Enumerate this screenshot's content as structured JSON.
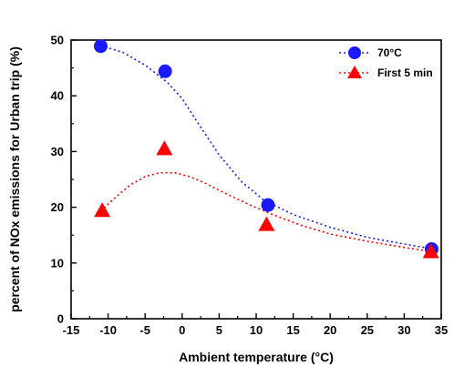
{
  "chart_data": {
    "type": "scatter",
    "xlabel": "Ambient temperature (°C)",
    "ylabel": "percent of NOx emissions for Urban trip (%)",
    "xlim": [
      -15,
      35
    ],
    "ylim": [
      0,
      50
    ],
    "x_ticks": [
      -15,
      -10,
      -5,
      0,
      5,
      10,
      15,
      20,
      25,
      30,
      35
    ],
    "y_ticks": [
      0,
      10,
      20,
      30,
      40,
      50
    ],
    "x_tick_labels": [
      "-15",
      "-10",
      "-5",
      "0",
      "5",
      "10",
      "15",
      "20",
      "25",
      "30",
      "35"
    ],
    "y_tick_labels": [
      "0",
      "10",
      "20",
      "30",
      "40",
      "50"
    ],
    "grid": false,
    "legend_position": "top-right",
    "series": [
      {
        "name": "70°C",
        "marker": "circle",
        "color": "#1a1aff",
        "trend_line": "dotted",
        "points": [
          {
            "x": -11,
            "y": 48.9
          },
          {
            "x": -2.3,
            "y": 44.4
          },
          {
            "x": 11.6,
            "y": 20.4
          },
          {
            "x": 33.7,
            "y": 12.5
          }
        ],
        "trend": [
          {
            "x": -11,
            "y": 49.0
          },
          {
            "x": -8,
            "y": 47.8
          },
          {
            "x": -5,
            "y": 45.5
          },
          {
            "x": -2,
            "y": 42.4
          },
          {
            "x": 0,
            "y": 39.5
          },
          {
            "x": 2,
            "y": 35.4
          },
          {
            "x": 5,
            "y": 29.4
          },
          {
            "x": 8,
            "y": 24.6
          },
          {
            "x": 11,
            "y": 21.3
          },
          {
            "x": 15,
            "y": 18.7
          },
          {
            "x": 20,
            "y": 16.4
          },
          {
            "x": 25,
            "y": 14.6
          },
          {
            "x": 30,
            "y": 13.4
          },
          {
            "x": 34,
            "y": 12.5
          }
        ]
      },
      {
        "name": "First 5 min",
        "marker": "triangle",
        "color": "#ff0000",
        "trend_line": "dotted",
        "points": [
          {
            "x": -10.8,
            "y": 19.4
          },
          {
            "x": -2.4,
            "y": 30.5
          },
          {
            "x": 11.4,
            "y": 16.9
          },
          {
            "x": 33.6,
            "y": 12.0
          }
        ],
        "trend": [
          {
            "x": -11,
            "y": 19.3
          },
          {
            "x": -9,
            "y": 21.8
          },
          {
            "x": -7,
            "y": 24.0
          },
          {
            "x": -5,
            "y": 25.5
          },
          {
            "x": -3,
            "y": 26.2
          },
          {
            "x": -1,
            "y": 26.2
          },
          {
            "x": 1,
            "y": 25.5
          },
          {
            "x": 3,
            "y": 24.4
          },
          {
            "x": 6,
            "y": 22.4
          },
          {
            "x": 9,
            "y": 20.5
          },
          {
            "x": 12,
            "y": 18.8
          },
          {
            "x": 16,
            "y": 16.8
          },
          {
            "x": 20,
            "y": 15.2
          },
          {
            "x": 25,
            "y": 13.9
          },
          {
            "x": 30,
            "y": 12.8
          },
          {
            "x": 34,
            "y": 12.0
          }
        ]
      }
    ]
  }
}
